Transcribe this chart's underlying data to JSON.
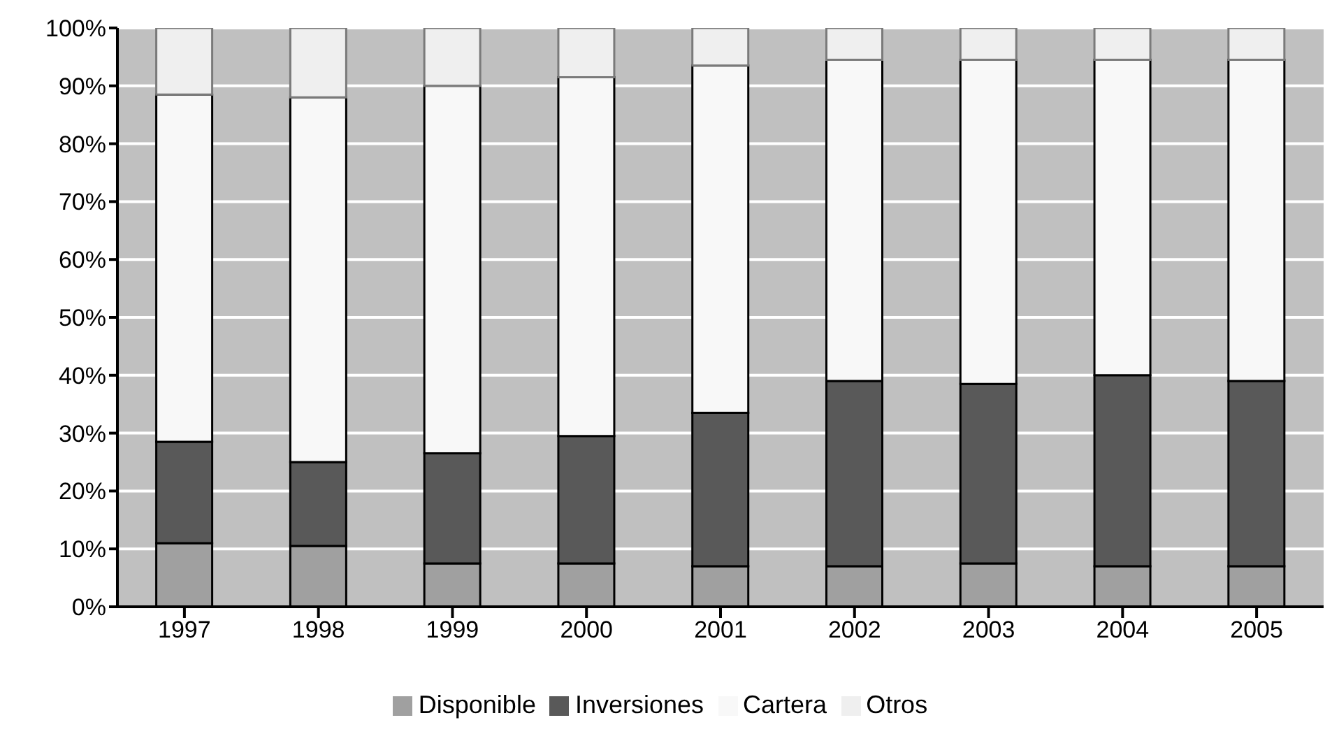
{
  "chart_data": {
    "type": "bar",
    "stacked": true,
    "categories": [
      "1997",
      "1998",
      "1999",
      "2000",
      "2001",
      "2002",
      "2003",
      "2004",
      "2005"
    ],
    "series": [
      {
        "name": "Disponible",
        "color": "#a0a0a0",
        "values": [
          11,
          10.5,
          7.5,
          7.5,
          7,
          7,
          7.5,
          7,
          7
        ]
      },
      {
        "name": "Inversiones",
        "color": "#595959",
        "values": [
          17.5,
          14.5,
          19,
          22,
          26.5,
          32,
          31,
          33,
          32
        ]
      },
      {
        "name": "Cartera",
        "color": "#f8f8f8",
        "values": [
          60,
          63,
          63.5,
          62,
          60,
          55.5,
          56,
          54.5,
          55.5
        ]
      },
      {
        "name": "Otros",
        "color": "#efefef",
        "values": [
          11.5,
          12,
          10,
          8.5,
          6.5,
          5.5,
          5.5,
          5.5,
          5.5
        ]
      }
    ],
    "ylim": [
      0,
      100
    ],
    "yticks": [
      {
        "value": 0,
        "label": "0%"
      },
      {
        "value": 10,
        "label": "10%"
      },
      {
        "value": 20,
        "label": "20%"
      },
      {
        "value": 30,
        "label": "30%"
      },
      {
        "value": 40,
        "label": "40%"
      },
      {
        "value": 50,
        "label": "50%"
      },
      {
        "value": 60,
        "label": "60%"
      },
      {
        "value": 70,
        "label": "70%"
      },
      {
        "value": 80,
        "label": "80%"
      },
      {
        "value": 90,
        "label": "90%"
      },
      {
        "value": 100,
        "label": "100%"
      }
    ],
    "grid": "y",
    "legend": "bottom"
  }
}
